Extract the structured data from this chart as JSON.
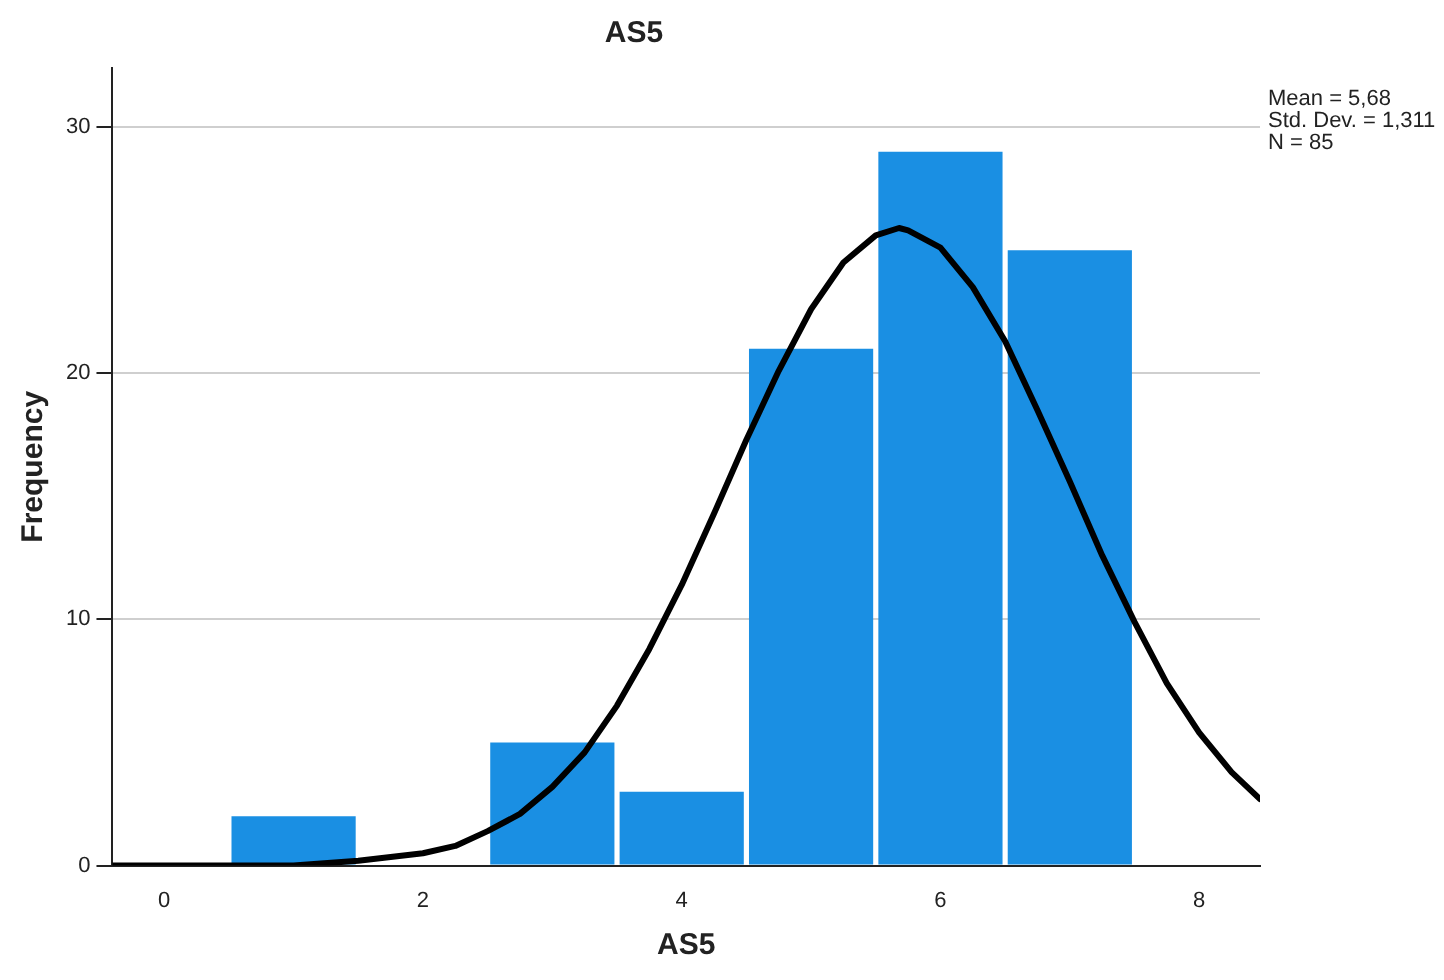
{
  "chart_data": {
    "type": "histogram",
    "title": "AS5",
    "xlabel": "AS5",
    "ylabel": "Frequency",
    "bins": [
      0.5,
      1.5,
      2.5,
      3.5,
      4.5,
      5.5,
      6.5,
      7.5
    ],
    "values": [
      2,
      0,
      5,
      3,
      21,
      29,
      25
    ],
    "color": "#1a8fe3",
    "series": [
      {
        "type": "line",
        "color": "#000000",
        "marker": "none",
        "line_style": "solid",
        "x": [
          -0.4,
          0,
          0.5,
          1,
          1.5,
          2,
          2.25,
          2.5,
          2.75,
          3,
          3.25,
          3.5,
          3.75,
          4,
          4.25,
          4.5,
          4.75,
          5,
          5.25,
          5.5,
          5.68,
          5.75,
          6,
          6.25,
          6.5,
          6.75,
          7,
          7.25,
          7.5,
          7.75,
          8,
          8.25,
          8.47
        ],
        "values": [
          0,
          0,
          0,
          0,
          0.2,
          0.5,
          0.8,
          1.4,
          2.1,
          3.2,
          4.6,
          6.5,
          8.8,
          11.4,
          14.3,
          17.3,
          20.1,
          22.6,
          24.5,
          25.6,
          25.9,
          25.8,
          25.1,
          23.5,
          21.3,
          18.5,
          15.6,
          12.6,
          9.9,
          7.4,
          5.4,
          3.8,
          2.7
        ]
      }
    ],
    "xlim": [
      -0.4,
      8.47
    ],
    "xticks": [
      0,
      2,
      4,
      6,
      8
    ],
    "ylim": [
      0,
      32.4
    ],
    "yticks": [
      0,
      10,
      20,
      30
    ],
    "grid": "y",
    "legend": false,
    "annotations": [
      "Mean = 5,68",
      "Std. Dev. = 1,311",
      "N = 85"
    ]
  }
}
